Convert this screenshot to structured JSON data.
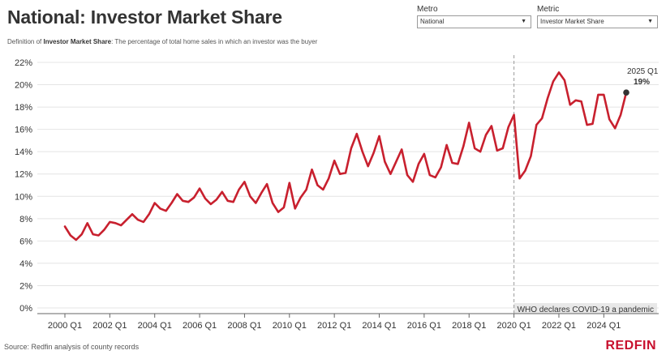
{
  "header": {
    "title": "National: Investor Market Share",
    "definition_prefix": "Definition of",
    "definition_term": "Investor Market Share",
    "definition_text": ": The percentage of total home sales in which an investor was the buyer"
  },
  "filters": {
    "metro": {
      "label": "Metro",
      "value": "National"
    },
    "metric": {
      "label": "Metric",
      "value": "Investor Market Share"
    }
  },
  "footer": {
    "source": "Source: Redfin analysis of county records",
    "brand": "REDFIN"
  },
  "colors": {
    "line": "#c8202e",
    "brand": "#c8102e",
    "grid": "#e4e4e4",
    "annotation_bg": "#e8e8e8",
    "marker": "#333333"
  },
  "chart_data": {
    "type": "line",
    "ylim": [
      0,
      22
    ],
    "yticks": [
      0,
      2,
      4,
      6,
      8,
      10,
      12,
      14,
      16,
      18,
      20,
      22
    ],
    "ytick_labels": [
      "0%",
      "2%",
      "4%",
      "6%",
      "8%",
      "10%",
      "12%",
      "14%",
      "16%",
      "18%",
      "20%",
      "22%"
    ],
    "xtick_labels": [
      "2000 Q1",
      "2002 Q1",
      "2004 Q1",
      "2006 Q1",
      "2008 Q1",
      "2010 Q1",
      "2012 Q1",
      "2014 Q1",
      "2016 Q1",
      "2018 Q1",
      "2020 Q1",
      "2022 Q1",
      "2024 Q1"
    ],
    "x_start": "2000 Q1",
    "grid": true,
    "series": [
      {
        "values": [
          7.3,
          6.5,
          6.1,
          6.6,
          7.6,
          6.6,
          6.5,
          7.0,
          7.7,
          7.6,
          7.4,
          7.9,
          8.4,
          7.9,
          7.7,
          8.4,
          9.4,
          8.9,
          8.7,
          9.4,
          10.2,
          9.6,
          9.5,
          9.9,
          10.7,
          9.8,
          9.3,
          9.7,
          10.4,
          9.6,
          9.5,
          10.6,
          11.3,
          10.0,
          9.4,
          10.3,
          11.1,
          9.4,
          8.6,
          9.0,
          11.2,
          8.9,
          9.9,
          10.6,
          12.4,
          11.0,
          10.6,
          11.6,
          13.2,
          12.0,
          12.1,
          14.3,
          15.6,
          14.0,
          12.7,
          13.9,
          15.4,
          13.1,
          12.0,
          13.1,
          14.2,
          11.9,
          11.3,
          12.9,
          13.8,
          11.9,
          11.7,
          12.6,
          14.6,
          13.0,
          12.9,
          14.5,
          16.6,
          14.3,
          14.0,
          15.5,
          16.3,
          14.1,
          14.3,
          16.2,
          17.3,
          11.6,
          12.3,
          13.6,
          16.4,
          17.0,
          18.8,
          20.3,
          21.1,
          20.4,
          18.2,
          18.6,
          18.5,
          16.4,
          16.5,
          19.1,
          19.1,
          16.9,
          16.1,
          17.3,
          19.3
        ]
      }
    ],
    "annotations": [
      {
        "label": "2025 Q1",
        "value_label": "19%"
      },
      {
        "label": "WHO declares COVID-19 a pandemic",
        "x": "2020 Q1"
      }
    ]
  }
}
